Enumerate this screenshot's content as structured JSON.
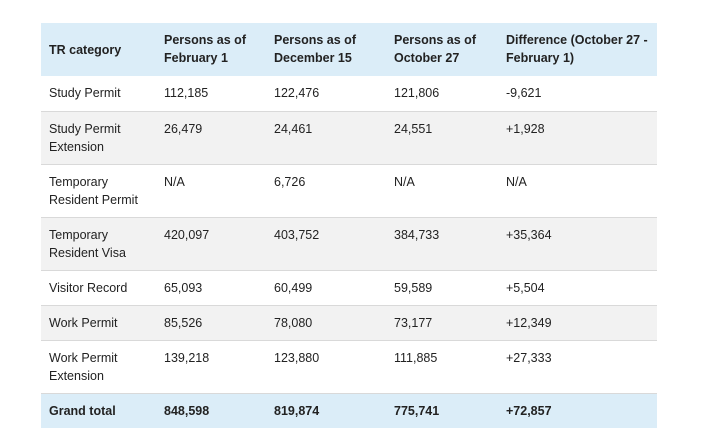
{
  "table": {
    "headers": [
      "TR category",
      "Persons as of February 1",
      "Persons as of December 15",
      "Persons as of October 27",
      "Difference (October 27 - February 1)"
    ],
    "rows": [
      [
        "Study Permit",
        "112,185",
        "122,476",
        "121,806",
        "-9,621"
      ],
      [
        "Study Permit Extension",
        "26,479",
        "24,461",
        "24,551",
        "+1,928"
      ],
      [
        "Temporary Resident Permit",
        "N/A",
        "6,726",
        "N/A",
        "N/A"
      ],
      [
        "Temporary Resident Visa",
        "420,097",
        "403,752",
        "384,733",
        "+35,364"
      ],
      [
        "Visitor Record",
        "65,093",
        "60,499",
        "59,589",
        "+5,504"
      ],
      [
        "Work Permit",
        "85,526",
        "78,080",
        "73,177",
        "+12,349"
      ],
      [
        "Work Permit Extension",
        "139,218",
        "123,880",
        "111,885",
        "+27,333"
      ]
    ],
    "total": [
      "Grand total",
      "848,598",
      "819,874",
      "775,741",
      "+72,857"
    ]
  }
}
